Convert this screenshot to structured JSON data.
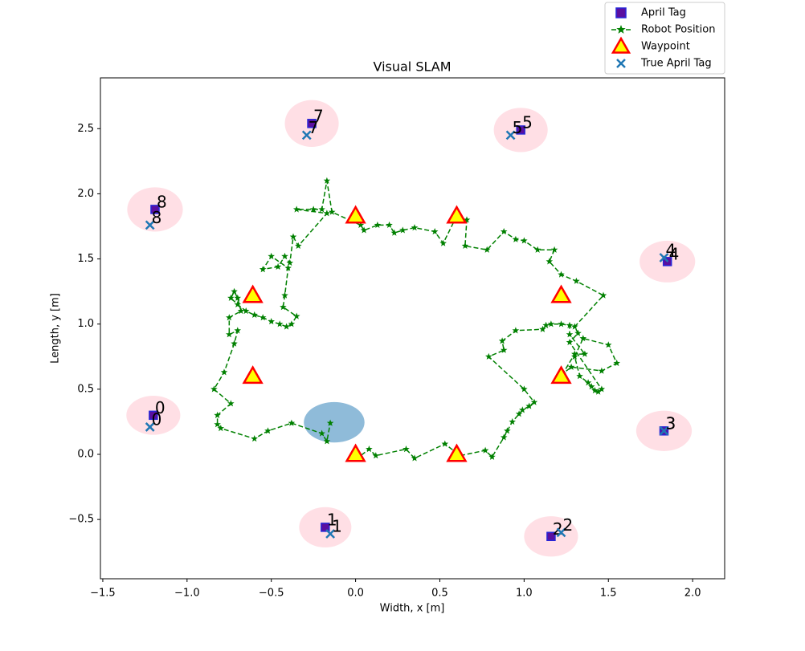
{
  "chart_data": {
    "type": "scatter",
    "title": "Visual SLAM",
    "xlabel": "Width, x [m]",
    "ylabel": "Length, y [m]",
    "xlim": [
      -1.514,
      2.19
    ],
    "ylim": [
      -0.955,
      2.89
    ],
    "xticks": [
      {
        "value": -1.5,
        "label": "−1.5"
      },
      {
        "value": -1.0,
        "label": "−1.0"
      },
      {
        "value": -0.5,
        "label": "−0.5"
      },
      {
        "value": 0,
        "label": "0.0"
      },
      0.5,
      {
        "value": 1,
        "label": "1.0"
      },
      1.5,
      {
        "value": 2,
        "label": "2.0"
      }
    ],
    "yticks": [
      {
        "value": -0.5,
        "label": "−0.5"
      },
      {
        "value": 0,
        "label": "0.0"
      },
      0.5,
      {
        "value": 1,
        "label": "1.0"
      },
      1.5,
      {
        "value": 2,
        "label": "2.0"
      },
      2.5
    ],
    "legend": "upper right",
    "series": [
      {
        "name": "April Tag",
        "marker": "square",
        "color": "#5a0fa0",
        "edgecolor": "#2626d8",
        "x": [
          -1.2,
          -0.18,
          1.16,
          1.83,
          1.85,
          0.98,
          -0.26,
          -1.19
        ],
        "y": [
          0.3,
          -0.56,
          -0.63,
          0.18,
          1.48,
          2.49,
          2.54,
          1.88
        ],
        "labels": [
          "0",
          "1",
          "2",
          "3",
          "4",
          "5",
          "7",
          "8"
        ],
        "ellipse_w": [
          0.32,
          0.31,
          0.32,
          0.33,
          0.33,
          0.32,
          0.32,
          0.33
        ],
        "ellipse_h": [
          0.3,
          0.31,
          0.31,
          0.31,
          0.32,
          0.34,
          0.36,
          0.34
        ],
        "ellipse_color": "#ffc0cb"
      },
      {
        "name": "Robot Position",
        "marker": "star",
        "color": "#008000",
        "x": [
          0,
          0.02,
          0.08,
          0.12,
          0.3,
          0.35,
          0.53,
          0.6,
          0.62,
          0.77,
          0.81,
          0.88,
          0.9,
          0.93,
          0.97,
          0.99,
          1.03,
          1.06,
          1.0,
          0.79,
          0.88,
          0.87,
          0.95,
          1.11,
          1.13,
          1.16,
          1.22,
          1.27,
          1.27,
          1.36,
          1.3,
          1.23,
          1.28,
          1.46,
          1.55,
          1.5,
          1.35,
          1.3,
          1.33,
          1.38,
          1.4,
          1.42,
          1.44,
          1.46,
          1.27,
          1.32,
          1.3,
          1.47,
          1.31,
          1.22,
          1.15,
          1.18,
          1.08,
          1.0,
          0.95,
          0.88,
          0.78,
          0.65,
          0.66,
          0.6,
          0.52,
          0.47,
          0.35,
          0.28,
          0.23,
          0.2,
          0.13,
          0.05,
          0.03,
          -0.14,
          -0.17,
          -0.2,
          -0.25,
          -0.35,
          -0.17,
          -0.34,
          -0.37,
          -0.39,
          -0.42,
          -0.46,
          -0.55,
          -0.5,
          -0.4,
          -0.42,
          -0.43,
          -0.35,
          -0.38,
          -0.41,
          -0.45,
          -0.5,
          -0.55,
          -0.6,
          -0.65,
          -0.7,
          -0.74,
          -0.72,
          -0.7,
          -0.68,
          -0.75,
          -0.75,
          -0.7,
          -0.72,
          -0.78,
          -0.84,
          -0.74,
          -0.82,
          -0.82,
          -0.8,
          -0.6,
          -0.52,
          -0.38,
          -0.2,
          -0.17,
          -0.15
        ],
        "y": [
          0,
          -0.02,
          0.04,
          -0.01,
          0.04,
          -0.03,
          0.08,
          0.01,
          -0.01,
          0.03,
          -0.02,
          0.13,
          0.18,
          0.25,
          0.31,
          0.34,
          0.37,
          0.4,
          0.5,
          0.75,
          0.8,
          0.87,
          0.95,
          0.96,
          0.99,
          1.0,
          1.0,
          0.99,
          0.92,
          0.77,
          0.77,
          0.62,
          0.67,
          0.64,
          0.7,
          0.84,
          0.89,
          0.75,
          0.6,
          0.55,
          0.52,
          0.49,
          0.48,
          0.5,
          0.86,
          0.93,
          0.98,
          1.22,
          1.33,
          1.38,
          1.48,
          1.57,
          1.57,
          1.64,
          1.65,
          1.71,
          1.57,
          1.6,
          1.8,
          1.83,
          1.62,
          1.71,
          1.74,
          1.72,
          1.7,
          1.76,
          1.76,
          1.72,
          1.76,
          1.86,
          2.1,
          1.88,
          1.88,
          1.88,
          1.85,
          1.6,
          1.67,
          1.47,
          1.52,
          1.44,
          1.42,
          1.52,
          1.43,
          1.22,
          1.13,
          1.06,
          1.0,
          0.98,
          1.0,
          1.02,
          1.05,
          1.07,
          1.1,
          1.15,
          1.2,
          1.25,
          1.2,
          1.1,
          1.05,
          0.92,
          0.95,
          0.85,
          0.63,
          0.5,
          0.39,
          0.3,
          0.23,
          0.2,
          0.12,
          0.18,
          0.24,
          0.16,
          0.1,
          0.24
        ],
        "ellipse": {
          "x": -0.127,
          "y": 0.246,
          "w": 0.36,
          "h": 0.31,
          "color": "#1f77b4"
        }
      },
      {
        "name": "Waypoint",
        "marker": "triangle",
        "color": "#ffff00",
        "edgecolor": "#ff0000",
        "x": [
          0,
          0.6,
          1.22,
          1.22,
          0.6,
          0,
          -0.61,
          -0.61
        ],
        "y": [
          0,
          0,
          0.6,
          1.22,
          1.83,
          1.83,
          1.22,
          0.6
        ]
      },
      {
        "name": "True April Tag",
        "marker": "x",
        "color": "#1f77b4",
        "x": [
          -1.22,
          -0.15,
          1.22,
          1.83,
          1.83,
          0.92,
          -0.29,
          -1.22
        ],
        "y": [
          0.21,
          -0.61,
          -0.6,
          0.18,
          1.51,
          2.45,
          2.45,
          1.76
        ],
        "labels": [
          "0",
          "1",
          "2",
          "3",
          "4",
          "5",
          "7",
          "8"
        ]
      }
    ]
  }
}
